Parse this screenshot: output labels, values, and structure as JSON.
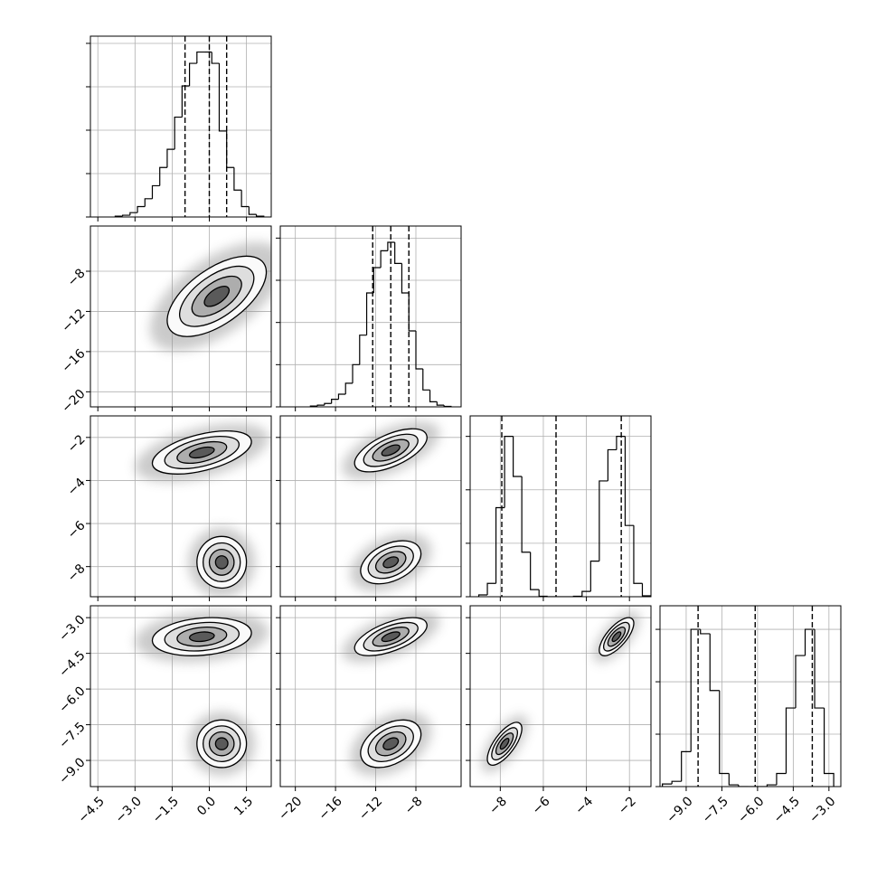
{
  "chart_data": {
    "type": "corner",
    "grid": true,
    "hist_color": "#000000",
    "quantile_color": "#000000",
    "contour_color": "#000000",
    "contour_levels": [
      2,
      1.5,
      1,
      0.5
    ],
    "contour_fills": [
      "#fafafa",
      "#dedede",
      "#adadad",
      "#5a5a5a"
    ],
    "scatter_color": "#8c8c8c",
    "params": [
      {
        "lim": [
          -4.8,
          2.5
        ],
        "ticks": [
          {
            "value": -4.5,
            "label": "−4.5"
          },
          {
            "value": -3.0,
            "label": "−3.0"
          },
          {
            "value": -1.5,
            "label": "−1.5"
          },
          {
            "value": 0,
            "label": "0.0"
          },
          {
            "value": 1.5,
            "label": "1.5"
          }
        ],
        "bins": [
          -3.8,
          -3.5,
          -3.2,
          -2.9,
          -2.6,
          -2.3,
          -2.0,
          -1.7,
          -1.4,
          -1.1,
          -0.8,
          -0.5,
          -0.2,
          0.1,
          0.4,
          0.7,
          1.0,
          1.3,
          1.6,
          1.9,
          2.2
        ],
        "counts": [
          10,
          20,
          50,
          120,
          210,
          360,
          570,
          780,
          1150,
          1510,
          1770,
          1900,
          1900,
          1770,
          990,
          570,
          310,
          120,
          30,
          10
        ],
        "hist_ylim": [
          0,
          2083
        ],
        "hist_yticks": [
          0,
          500,
          1000,
          1500,
          2000
        ],
        "quantiles": [
          -0.98,
          0.0,
          0.7
        ]
      },
      {
        "lim": [
          -21.5,
          -3.5
        ],
        "ticks": [
          {
            "value": -20,
            "label": "−20"
          },
          {
            "value": -16,
            "label": "−16"
          },
          {
            "value": -12,
            "label": "−12"
          },
          {
            "value": -8,
            "label": "−8"
          }
        ],
        "bins": [
          -18.5,
          -17.8,
          -17.1,
          -16.4,
          -15.7,
          -15.0,
          -14.3,
          -13.6,
          -12.9,
          -12.2,
          -11.5,
          -10.8,
          -10.1,
          -9.4,
          -8.7,
          -8.0,
          -7.3,
          -6.6,
          -5.9,
          -5.2,
          -4.5
        ],
        "counts": [
          10,
          20,
          40,
          90,
          150,
          280,
          500,
          850,
          1350,
          1650,
          1850,
          1950,
          1700,
          1350,
          900,
          450,
          200,
          60,
          20,
          5
        ],
        "hist_ylim": [
          0,
          2143
        ],
        "hist_yticks": [
          0,
          500,
          1000,
          1500,
          2000
        ],
        "quantiles": [
          -12.3,
          -10.5,
          -8.7
        ]
      },
      {
        "lim": [
          -9.4,
          -1.0
        ],
        "ticks": [
          {
            "value": -8,
            "label": "−8"
          },
          {
            "value": -6,
            "label": "−6"
          },
          {
            "value": -4,
            "label": "−4"
          },
          {
            "value": -2,
            "label": "−2"
          }
        ],
        "bins": [
          -9.0,
          -8.6,
          -8.2,
          -7.8,
          -7.4,
          -7.0,
          -6.6,
          -6.2,
          -5.8,
          -5.4,
          -5.0,
          -4.6,
          -4.2,
          -3.8,
          -3.4,
          -3.0,
          -2.6,
          -2.2,
          -1.8,
          -1.4,
          -1.0
        ],
        "counts": [
          20,
          150,
          1000,
          1800,
          1350,
          500,
          80,
          5,
          0,
          0,
          0,
          5,
          60,
          400,
          1300,
          1650,
          1800,
          800,
          150,
          10
        ],
        "hist_ylim": [
          0,
          2030
        ],
        "hist_yticks": [
          0,
          600,
          1200,
          1800
        ],
        "quantiles": [
          -7.93,
          -5.41,
          -2.38
        ]
      },
      {
        "lim": [
          -10.1,
          -2.5
        ],
        "ticks": [
          {
            "value": -9.0,
            "label": "−9.0"
          },
          {
            "value": -7.5,
            "label": "−7.5"
          },
          {
            "value": -6.0,
            "label": "−6.0"
          },
          {
            "value": -4.5,
            "label": "−4.5"
          },
          {
            "value": -3.0,
            "label": "−3.0"
          }
        ],
        "bins": [
          -10.0,
          -9.6,
          -9.2,
          -8.8,
          -8.4,
          -8.0,
          -7.6,
          -7.2,
          -6.8,
          -6.4,
          -6.0,
          -5.6,
          -5.2,
          -4.8,
          -4.4,
          -4.0,
          -3.6,
          -3.2,
          -2.8
        ],
        "counts": [
          30,
          60,
          400,
          1800,
          1750,
          1100,
          150,
          20,
          0,
          0,
          0,
          20,
          150,
          900,
          1500,
          1800,
          900,
          150
        ],
        "hist_ylim": [
          0,
          2070
        ],
        "hist_yticks": [
          0,
          600,
          1200,
          1800
        ],
        "quantiles": [
          -8.5,
          -6.1,
          -3.7
        ]
      }
    ],
    "pairs": [
      {
        "clusters": [
          {
            "center": [
              0.3,
              -10.5
            ],
            "sigma": [
              1.0,
              2.0
            ],
            "rho": 0.6
          }
        ]
      },
      {
        "clusters": [
          {
            "center": [
              -0.3,
              -2.7
            ],
            "sigma": [
              1.0,
              0.5
            ],
            "rho": 0.5
          },
          {
            "center": [
              0.5,
              -7.8
            ],
            "sigma": [
              0.5,
              0.6
            ],
            "rho": 0.0
          }
        ]
      },
      {
        "clusters": [
          {
            "center": [
              -10.5,
              -2.6
            ],
            "sigma": [
              1.8,
              0.5
            ],
            "rho": 0.6
          },
          {
            "center": [
              -10.5,
              -7.8
            ],
            "sigma": [
              1.5,
              0.5
            ],
            "rho": 0.4
          }
        ]
      },
      {
        "clusters": [
          {
            "center": [
              -0.3,
              -3.8
            ],
            "sigma": [
              1.0,
              0.4
            ],
            "rho": 0.2
          },
          {
            "center": [
              0.5,
              -8.3
            ],
            "sigma": [
              0.5,
              0.5
            ],
            "rho": 0.0
          }
        ]
      },
      {
        "clusters": [
          {
            "center": [
              -10.5,
              -3.8
            ],
            "sigma": [
              1.8,
              0.4
            ],
            "rho": 0.6
          },
          {
            "center": [
              -10.5,
              -8.3
            ],
            "sigma": [
              1.5,
              0.5
            ],
            "rho": 0.4
          }
        ]
      },
      {
        "clusters": [
          {
            "center": [
              -2.6,
              -3.8
            ],
            "sigma": [
              0.4,
              0.4
            ],
            "rho": 0.7
          },
          {
            "center": [
              -7.8,
              -8.3
            ],
            "sigma": [
              0.4,
              0.45
            ],
            "rho": 0.7
          }
        ]
      }
    ]
  }
}
